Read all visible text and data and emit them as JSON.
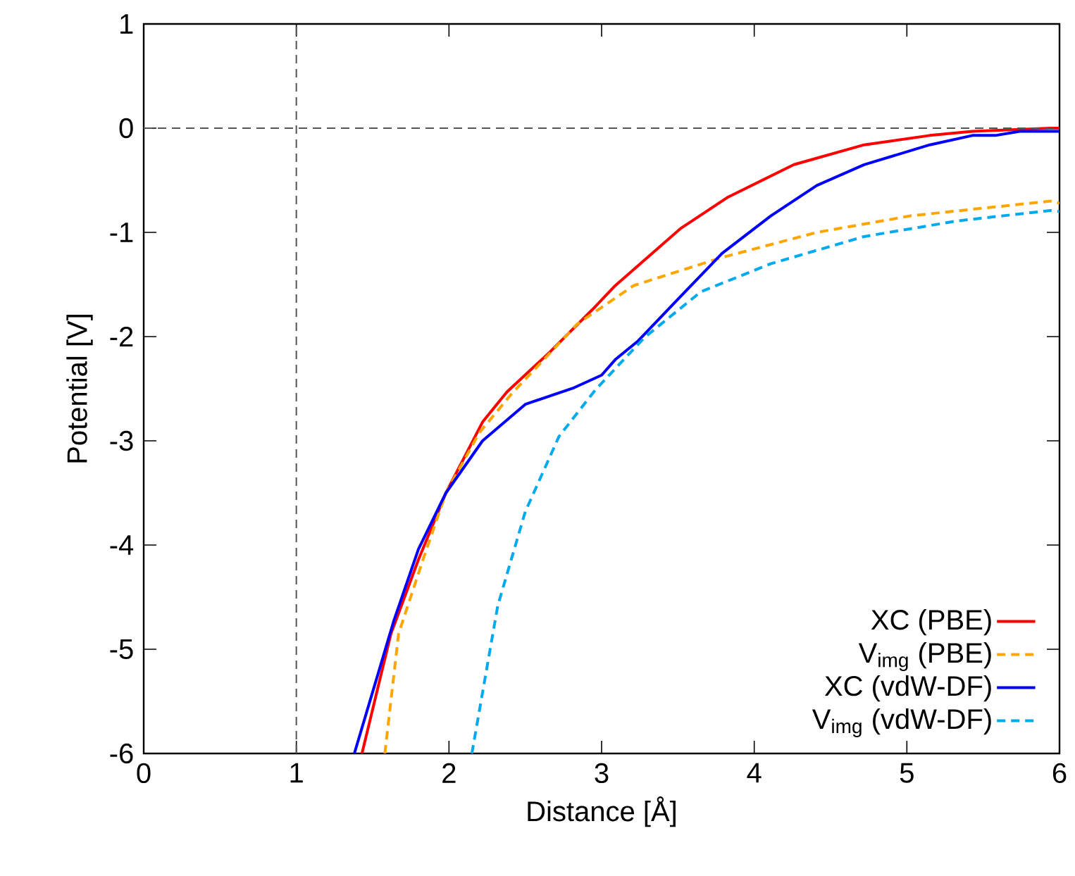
{
  "chart_data": {
    "type": "line",
    "xlabel": "Distance [Å]",
    "ylabel": "Potential [V]",
    "xlim": [
      0,
      6
    ],
    "ylim": [
      -6,
      1
    ],
    "xticks": [
      0,
      1,
      2,
      3,
      4,
      5,
      6
    ],
    "yticks": [
      -6,
      -5,
      -4,
      -3,
      -2,
      -1,
      0,
      1
    ],
    "grid": false,
    "legend": "bottom right",
    "marker": "none",
    "ref_lines": [
      {
        "axis": "x",
        "value": 1,
        "color": "#555555",
        "line_style": "dashed"
      },
      {
        "axis": "y",
        "value": 0,
        "color": "#555555",
        "line_style": "dashed"
      }
    ],
    "series": [
      {
        "name": "XC (PBE)",
        "color": "#ff0000",
        "line_style": "solid",
        "x": [
          1.43,
          1.62,
          1.8,
          1.98,
          2.1,
          2.22,
          2.38,
          2.66,
          2.94,
          3.09,
          3.52,
          3.83,
          4.26,
          4.72,
          5.15,
          5.43,
          5.94,
          6
        ],
        "values": [
          -6,
          -4.85,
          -4.14,
          -3.5,
          -3.16,
          -2.82,
          -2.53,
          -2.15,
          -1.74,
          -1.51,
          -0.96,
          -0.66,
          -0.35,
          -0.16,
          -0.07,
          -0.03,
          0,
          0
        ]
      },
      {
        "name": "V$_{img}$ (PBE)",
        "color": "#ffa500",
        "line_style": "dashed",
        "x": [
          1.58,
          1.67,
          1.83,
          1.98,
          2.2,
          2.41,
          2.84,
          3.21,
          3.79,
          4.41,
          5.03,
          5.94,
          6
        ],
        "values": [
          -6,
          -4.85,
          -4.14,
          -3.5,
          -2.92,
          -2.55,
          -1.88,
          -1.51,
          -1.24,
          -1.0,
          -0.84,
          -0.7,
          -0.72
        ]
      },
      {
        "name": "XC (vdW-DF)",
        "color": "#0000ff",
        "line_style": "solid",
        "x": [
          1.38,
          1.64,
          1.8,
          1.98,
          2.22,
          2.5,
          2.82,
          3.0,
          3.09,
          3.24,
          3.52,
          3.79,
          4.11,
          4.41,
          4.72,
          5.15,
          5.43,
          5.58,
          5.74,
          5.94,
          6
        ],
        "values": [
          -6,
          -4.72,
          -4.04,
          -3.5,
          -3.0,
          -2.65,
          -2.49,
          -2.37,
          -2.22,
          -2.04,
          -1.61,
          -1.2,
          -0.84,
          -0.55,
          -0.35,
          -0.16,
          -0.07,
          -0.07,
          -0.03,
          -0.03,
          -0.03
        ]
      },
      {
        "name": "V$_{img}$ (vdW-DF)",
        "color": "#00aaee",
        "line_style": "dashed",
        "x": [
          2.15,
          2.32,
          2.5,
          2.72,
          2.96,
          3.28,
          3.65,
          4.11,
          4.72,
          5.33,
          5.94,
          6
        ],
        "values": [
          -6,
          -4.58,
          -3.68,
          -2.96,
          -2.51,
          -2.01,
          -1.57,
          -1.3,
          -1.04,
          -0.89,
          -0.79,
          -0.8
        ]
      }
    ]
  }
}
